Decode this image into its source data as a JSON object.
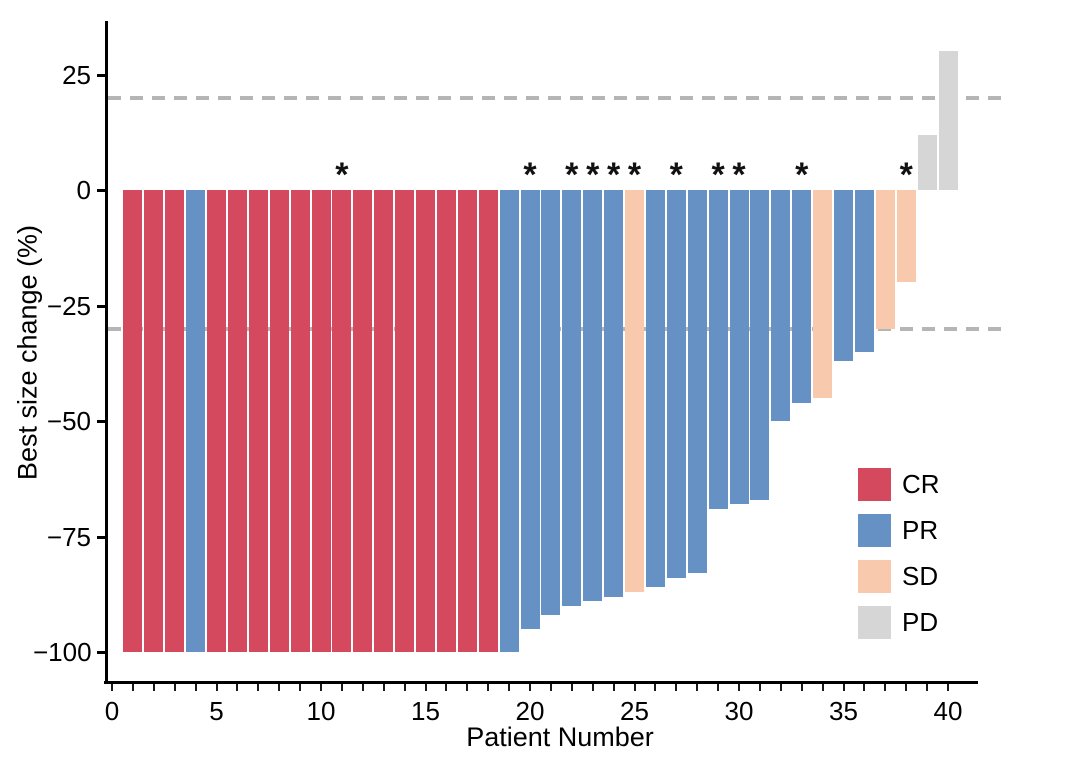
{
  "chart_data": {
    "type": "bar",
    "title": "",
    "xlabel": "Patient Number",
    "ylabel": "Best size change (%)",
    "xlim": [
      0,
      41
    ],
    "ylim": [
      -107,
      37
    ],
    "grid": false,
    "legend_position": "inside-right",
    "x_axis": {
      "minor_tick_every": 1,
      "minor_tick_min": 0,
      "minor_tick_max": 40,
      "major_ticks": [
        {
          "value": 0,
          "label": "0"
        },
        {
          "value": 5,
          "label": "5"
        },
        {
          "value": 10,
          "label": "10"
        },
        {
          "value": 15,
          "label": "15"
        },
        {
          "value": 20,
          "label": "20"
        },
        {
          "value": 25,
          "label": "25"
        },
        {
          "value": 30,
          "label": "30"
        },
        {
          "value": 35,
          "label": "35"
        },
        {
          "value": 40,
          "label": "40"
        }
      ]
    },
    "y_axis": {
      "ticks": [
        {
          "value": 25,
          "label": "25"
        },
        {
          "value": 0,
          "label": "0"
        },
        {
          "value": -25,
          "label": "−25"
        },
        {
          "value": -50,
          "label": "−50"
        },
        {
          "value": -75,
          "label": "−75"
        },
        {
          "value": -100,
          "label": "−100"
        }
      ]
    },
    "reference_lines": [
      {
        "value": 20,
        "style": "dashed"
      },
      {
        "value": -30,
        "style": "dashed"
      }
    ],
    "legend": [
      {
        "label": "CR",
        "color": "#D5495F"
      },
      {
        "label": "PR",
        "color": "#6691C4"
      },
      {
        "label": "SD",
        "color": "#F8C9AD"
      },
      {
        "label": "PD",
        "color": "#D6D6D6"
      }
    ],
    "annotation_symbol": "*",
    "bars": [
      {
        "patient": 1,
        "value": -100,
        "response": "CR",
        "star": false
      },
      {
        "patient": 2,
        "value": -100,
        "response": "CR",
        "star": false
      },
      {
        "patient": 3,
        "value": -100,
        "response": "CR",
        "star": false
      },
      {
        "patient": 4,
        "value": -100,
        "response": "PR",
        "star": false
      },
      {
        "patient": 5,
        "value": -100,
        "response": "CR",
        "star": false
      },
      {
        "patient": 6,
        "value": -100,
        "response": "CR",
        "star": false
      },
      {
        "patient": 7,
        "value": -100,
        "response": "CR",
        "star": false
      },
      {
        "patient": 8,
        "value": -100,
        "response": "CR",
        "star": false
      },
      {
        "patient": 9,
        "value": -100,
        "response": "CR",
        "star": false
      },
      {
        "patient": 10,
        "value": -100,
        "response": "CR",
        "star": false
      },
      {
        "patient": 11,
        "value": -100,
        "response": "CR",
        "star": true
      },
      {
        "patient": 12,
        "value": -100,
        "response": "CR",
        "star": false
      },
      {
        "patient": 13,
        "value": -100,
        "response": "CR",
        "star": false
      },
      {
        "patient": 14,
        "value": -100,
        "response": "CR",
        "star": false
      },
      {
        "patient": 15,
        "value": -100,
        "response": "CR",
        "star": false
      },
      {
        "patient": 16,
        "value": -100,
        "response": "CR",
        "star": false
      },
      {
        "patient": 17,
        "value": -100,
        "response": "CR",
        "star": false
      },
      {
        "patient": 18,
        "value": -100,
        "response": "CR",
        "star": false
      },
      {
        "patient": 19,
        "value": -100,
        "response": "PR",
        "star": false
      },
      {
        "patient": 20,
        "value": -95,
        "response": "PR",
        "star": true
      },
      {
        "patient": 21,
        "value": -92,
        "response": "PR",
        "star": false
      },
      {
        "patient": 22,
        "value": -90,
        "response": "PR",
        "star": true
      },
      {
        "patient": 23,
        "value": -89,
        "response": "PR",
        "star": true
      },
      {
        "patient": 24,
        "value": -88,
        "response": "PR",
        "star": true
      },
      {
        "patient": 25,
        "value": -87,
        "response": "SD",
        "star": true
      },
      {
        "patient": 26,
        "value": -86,
        "response": "PR",
        "star": false
      },
      {
        "patient": 27,
        "value": -84,
        "response": "PR",
        "star": true
      },
      {
        "patient": 28,
        "value": -83,
        "response": "PR",
        "star": false
      },
      {
        "patient": 29,
        "value": -69,
        "response": "PR",
        "star": true
      },
      {
        "patient": 30,
        "value": -68,
        "response": "PR",
        "star": true
      },
      {
        "patient": 31,
        "value": -67,
        "response": "PR",
        "star": false
      },
      {
        "patient": 32,
        "value": -50,
        "response": "PR",
        "star": false
      },
      {
        "patient": 33,
        "value": -46,
        "response": "PR",
        "star": true
      },
      {
        "patient": 34,
        "value": -45,
        "response": "SD",
        "star": false
      },
      {
        "patient": 35,
        "value": -37,
        "response": "PR",
        "star": false
      },
      {
        "patient": 36,
        "value": -35,
        "response": "PR",
        "star": false
      },
      {
        "patient": 37,
        "value": -30,
        "response": "SD",
        "star": false
      },
      {
        "patient": 38,
        "value": -20,
        "response": "SD",
        "star": true
      },
      {
        "patient": 39,
        "value": 12,
        "response": "PD",
        "star": false
      },
      {
        "patient": 40,
        "value": 30,
        "response": "PD",
        "star": false
      }
    ]
  },
  "colors": {
    "axis": "#000000",
    "reference_line": "#B5B5B5",
    "background": "#FFFFFF",
    "text": "#000000"
  }
}
